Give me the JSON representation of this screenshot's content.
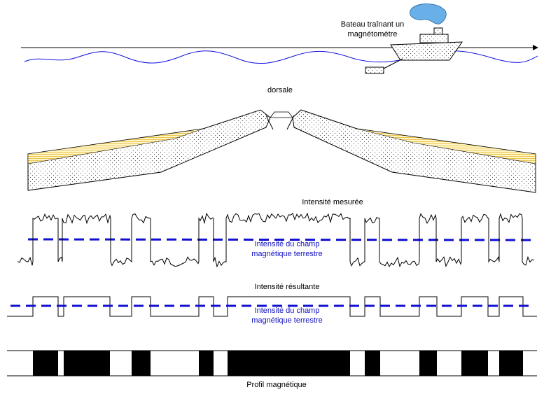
{
  "ship": {
    "label_lines": [
      "Bateau traînant un",
      "magnétomètre"
    ]
  },
  "ridge": {
    "label": "dorsale"
  },
  "measured": {
    "title": "Intensité mesurée",
    "field_label_lines": [
      "Intensité du champ",
      "magnétique terrestre"
    ]
  },
  "resultant": {
    "title": "Intensité résultante",
    "field_label_lines": [
      "Intensité du champ",
      "magnétique terrestre"
    ]
  },
  "profile": {
    "label": "Profil magnétique"
  }
}
